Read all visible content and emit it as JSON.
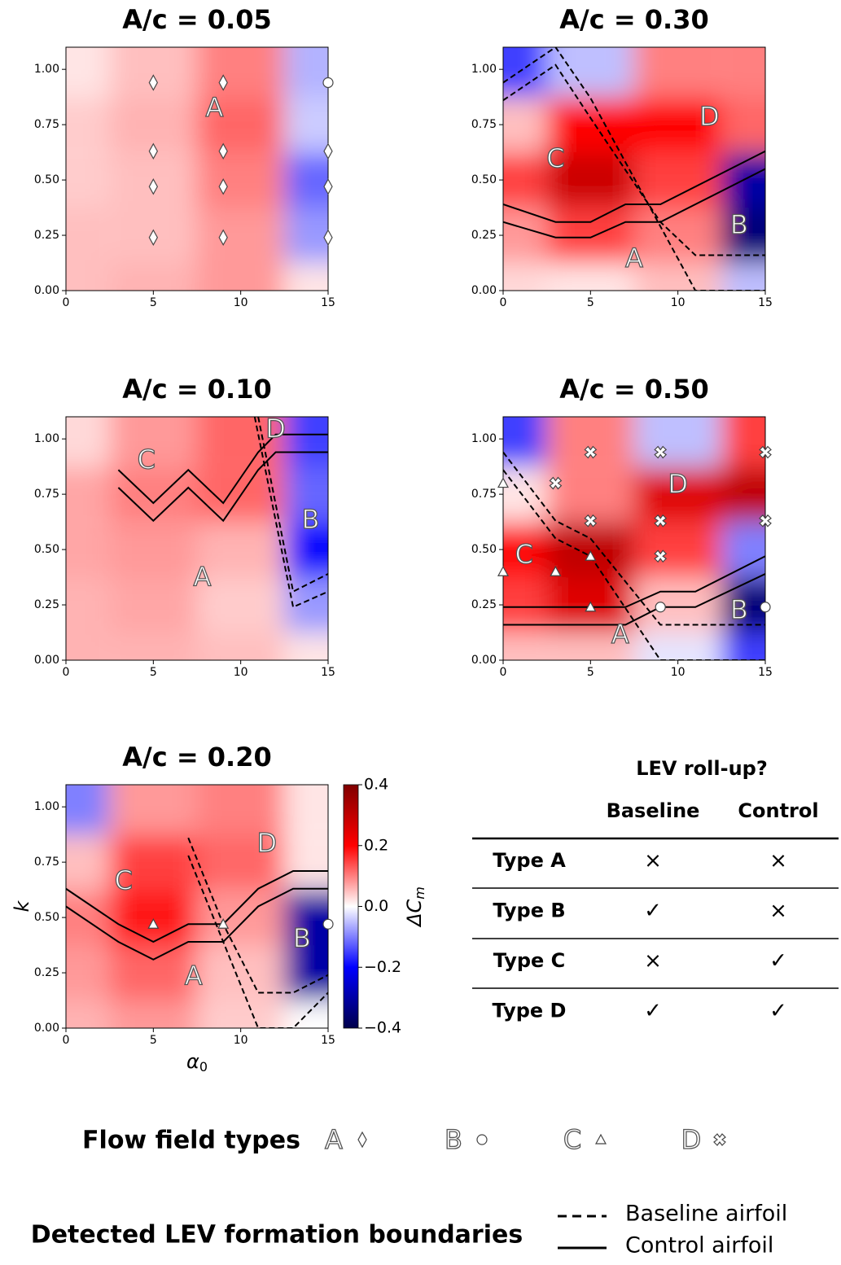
{
  "chart_data": [
    {
      "type": "heatmap",
      "title": "A/c = 0.05",
      "colormap": "seismic",
      "clim": [
        -0.4,
        0.4
      ],
      "xlim": [
        0,
        15
      ],
      "ylim": [
        0,
        1.1
      ],
      "xticks": [
        0,
        5,
        10,
        15
      ],
      "yticks": [
        {
          "value": 0,
          "label": "0.00"
        },
        {
          "value": 0.25,
          "label": "0.25"
        },
        {
          "value": 0.5,
          "label": "0.50"
        },
        {
          "value": 0.75,
          "label": "0.75"
        },
        {
          "value": 1,
          "label": "1.00"
        }
      ],
      "grid_x": [
        0,
        5,
        10,
        15
      ],
      "grid_y": [
        0,
        0.25,
        0.5,
        0.75,
        1.0
      ],
      "z": [
        [
          0.05,
          0.06,
          0.08,
          0.02
        ],
        [
          0.05,
          0.05,
          0.08,
          -0.08
        ],
        [
          0.04,
          0.05,
          0.1,
          -0.12
        ],
        [
          0.04,
          0.06,
          0.12,
          -0.04
        ],
        [
          0.02,
          0.05,
          0.1,
          -0.06
        ]
      ],
      "region_labels": [
        "A"
      ],
      "lines": [],
      "points": [
        {
          "group": "A",
          "x": [
            5,
            5,
            5,
            5,
            9,
            9,
            9,
            9,
            15,
            15,
            15
          ],
          "y": [
            0.94,
            0.63,
            0.47,
            0.24,
            0.94,
            0.63,
            0.47,
            0.24,
            0.63,
            0.47,
            0.24
          ]
        },
        {
          "group": "B",
          "x": [
            15
          ],
          "y": [
            0.94
          ]
        }
      ]
    },
    {
      "type": "heatmap",
      "title": "A/c = 0.30",
      "colormap": "seismic",
      "clim": [
        -0.4,
        0.4
      ],
      "xlim": [
        0,
        15
      ],
      "ylim": [
        0,
        1.1
      ],
      "xticks": [
        0,
        5,
        10,
        15
      ],
      "yticks": [
        {
          "value": 0,
          "label": "0.00"
        },
        {
          "value": 0.25,
          "label": "0.25"
        },
        {
          "value": 0.5,
          "label": "0.50"
        },
        {
          "value": 0.75,
          "label": "0.75"
        },
        {
          "value": 1,
          "label": "1.00"
        }
      ],
      "grid_x": [
        0,
        5,
        10,
        15
      ],
      "grid_y": [
        0,
        0.25,
        0.5,
        0.75,
        1.0
      ],
      "z": [
        [
          0.03,
          0.02,
          0.05,
          -0.05
        ],
        [
          0.08,
          0.15,
          0.1,
          -0.35
        ],
        [
          0.15,
          0.28,
          0.15,
          -0.3
        ],
        [
          0.05,
          0.2,
          0.2,
          0.12
        ],
        [
          -0.15,
          -0.05,
          0.1,
          0.1
        ]
      ],
      "region_labels": [
        "D",
        "C",
        "B",
        "A"
      ],
      "lines": [
        {
          "style": "dashed",
          "x": [
            0,
            3,
            5,
            11,
            15
          ],
          "y": [
            0.94,
            1.1,
            0.87,
            0,
            0
          ]
        },
        {
          "style": "dashed",
          "x": [
            0,
            3,
            5,
            9,
            11,
            15
          ],
          "y": [
            0.86,
            1.02,
            0.78,
            0.31,
            0.16,
            0.16
          ]
        },
        {
          "style": "solid",
          "x": [
            0,
            3,
            5,
            7,
            9,
            15
          ],
          "y": [
            0.39,
            0.31,
            0.31,
            0.39,
            0.39,
            0.63
          ]
        },
        {
          "style": "solid",
          "x": [
            0,
            3,
            5,
            7,
            9,
            15
          ],
          "y": [
            0.31,
            0.24,
            0.24,
            0.31,
            0.31,
            0.55
          ]
        }
      ],
      "points": []
    },
    {
      "type": "heatmap",
      "title": "A/c = 0.10",
      "colormap": "seismic",
      "clim": [
        -0.4,
        0.4
      ],
      "xlim": [
        0,
        15
      ],
      "ylim": [
        0,
        1.1
      ],
      "xticks": [
        0,
        5,
        10,
        15
      ],
      "yticks": [
        {
          "value": 0,
          "label": "0.00"
        },
        {
          "value": 0.25,
          "label": "0.25"
        },
        {
          "value": 0.5,
          "label": "0.50"
        },
        {
          "value": 0.75,
          "label": "0.75"
        },
        {
          "value": 1,
          "label": "1.00"
        }
      ],
      "grid_x": [
        0,
        5,
        10,
        15
      ],
      "grid_y": [
        0,
        0.25,
        0.5,
        0.75,
        1.0
      ],
      "z": [
        [
          0.06,
          0.06,
          0.05,
          0.02
        ],
        [
          0.06,
          0.07,
          0.04,
          -0.08
        ],
        [
          0.07,
          0.08,
          0.06,
          -0.2
        ],
        [
          0.07,
          0.1,
          0.12,
          -0.12
        ],
        [
          0.03,
          0.08,
          0.12,
          -0.15
        ]
      ],
      "region_labels": [
        "D",
        "C",
        "B",
        "A"
      ],
      "lines": [
        {
          "style": "dashed",
          "x": [
            11,
            13,
            15
          ],
          "y": [
            1.1,
            0.31,
            0.39
          ]
        },
        {
          "style": "dashed",
          "x": [
            10.8,
            13,
            15
          ],
          "y": [
            1.1,
            0.24,
            0.31
          ]
        },
        {
          "style": "solid",
          "x": [
            3,
            5,
            7,
            9,
            11,
            12,
            15
          ],
          "y": [
            0.86,
            0.71,
            0.86,
            0.71,
            0.94,
            1.02,
            1.02
          ]
        },
        {
          "style": "solid",
          "x": [
            3,
            5,
            7,
            9,
            11,
            12,
            15
          ],
          "y": [
            0.78,
            0.63,
            0.78,
            0.63,
            0.86,
            0.94,
            0.94
          ]
        }
      ],
      "points": []
    },
    {
      "type": "heatmap",
      "title": "A/c = 0.50",
      "colormap": "seismic",
      "clim": [
        -0.4,
        0.4
      ],
      "xlim": [
        0,
        15
      ],
      "ylim": [
        0,
        1.1
      ],
      "xticks": [
        0,
        5,
        10,
        15
      ],
      "yticks": [
        {
          "value": 0,
          "label": "0.00"
        },
        {
          "value": 0.25,
          "label": "0.25"
        },
        {
          "value": 0.5,
          "label": "0.50"
        },
        {
          "value": 0.75,
          "label": "0.75"
        },
        {
          "value": 1,
          "label": "1.00"
        }
      ],
      "grid_x": [
        0,
        5,
        10,
        15
      ],
      "grid_y": [
        0,
        0.25,
        0.5,
        0.75,
        1.0
      ],
      "z": [
        [
          0.05,
          0.05,
          -0.02,
          -0.15
        ],
        [
          0.15,
          0.25,
          0.05,
          -0.35
        ],
        [
          0.2,
          0.3,
          0.15,
          -0.1
        ],
        [
          0.02,
          0.1,
          0.25,
          0.3
        ],
        [
          -0.15,
          0.1,
          -0.05,
          0.15
        ]
      ],
      "region_labels": [
        "D",
        "C",
        "B",
        "A"
      ],
      "lines": [
        {
          "style": "dashed",
          "x": [
            0,
            3,
            5,
            9,
            15
          ],
          "y": [
            0.94,
            0.63,
            0.55,
            0.16,
            0.16
          ]
        },
        {
          "style": "dashed",
          "x": [
            0,
            3,
            5,
            9,
            15
          ],
          "y": [
            0.86,
            0.55,
            0.47,
            0,
            0
          ]
        },
        {
          "style": "solid",
          "x": [
            0,
            7,
            9,
            11,
            15
          ],
          "y": [
            0.24,
            0.24,
            0.31,
            0.31,
            0.47
          ]
        },
        {
          "style": "solid",
          "x": [
            0,
            7,
            9,
            11,
            15
          ],
          "y": [
            0.16,
            0.16,
            0.24,
            0.24,
            0.39
          ]
        }
      ],
      "points": [
        {
          "group": "C",
          "x": [
            0,
            0,
            3,
            5,
            5
          ],
          "y": [
            0.8,
            0.4,
            0.4,
            0.47,
            0.24
          ]
        },
        {
          "group": "D",
          "x": [
            5,
            9,
            15,
            3,
            5,
            9,
            15,
            9
          ],
          "y": [
            0.94,
            0.94,
            0.94,
            0.8,
            0.63,
            0.63,
            0.63,
            0.47
          ]
        },
        {
          "group": "B",
          "x": [
            9,
            15
          ],
          "y": [
            0.24,
            0.24
          ]
        }
      ]
    },
    {
      "type": "heatmap",
      "title": "A/c = 0.20",
      "colormap": "seismic",
      "clim": [
        -0.4,
        0.4
      ],
      "xlim": [
        0,
        15
      ],
      "ylim": [
        0,
        1.1
      ],
      "xticks": [
        0,
        5,
        10,
        15
      ],
      "yticks": [
        {
          "value": 0,
          "label": "0.00"
        },
        {
          "value": 0.25,
          "label": "0.25"
        },
        {
          "value": 0.5,
          "label": "0.50"
        },
        {
          "value": 0.75,
          "label": "0.75"
        },
        {
          "value": 1,
          "label": "1.00"
        }
      ],
      "xlabel": "α",
      "xlabel_sub": "0",
      "ylabel": "k",
      "grid_x": [
        0,
        5,
        10,
        15
      ],
      "grid_y": [
        0,
        0.25,
        0.5,
        0.75,
        1.0
      ],
      "z": [
        [
          0.06,
          0.08,
          0.04,
          0.0
        ],
        [
          0.08,
          0.12,
          0.05,
          -0.3
        ],
        [
          0.1,
          0.18,
          0.08,
          -0.3
        ],
        [
          0.05,
          0.15,
          0.12,
          0.02
        ],
        [
          -0.1,
          0.08,
          0.1,
          0.02
        ]
      ],
      "region_labels": [
        "D",
        "C",
        "B",
        "A"
      ],
      "lines": [
        {
          "style": "dashed",
          "x": [
            7,
            9,
            11,
            13,
            15
          ],
          "y": [
            0.86,
            0.47,
            0.16,
            0.16,
            0.24
          ]
        },
        {
          "style": "dashed",
          "x": [
            7,
            9,
            11,
            13,
            15
          ],
          "y": [
            0.78,
            0.39,
            0,
            0,
            0.16
          ]
        },
        {
          "style": "solid",
          "x": [
            0,
            3,
            5,
            7,
            9,
            11,
            13,
            15
          ],
          "y": [
            0.63,
            0.47,
            0.39,
            0.47,
            0.47,
            0.63,
            0.71,
            0.71
          ]
        },
        {
          "style": "solid",
          "x": [
            0,
            3,
            5,
            7,
            9,
            11,
            13,
            15
          ],
          "y": [
            0.55,
            0.39,
            0.31,
            0.39,
            0.39,
            0.55,
            0.63,
            0.63
          ]
        }
      ],
      "points": [
        {
          "group": "C",
          "x": [
            5,
            9
          ],
          "y": [
            0.47,
            0.47
          ]
        },
        {
          "group": "B",
          "x": [
            15
          ],
          "y": [
            0.47
          ]
        }
      ],
      "colorbar": {
        "label": "ΔC",
        "label_sub": "m",
        "ticks": [
          0.4,
          0.2,
          {
            "value": 0,
            "label": "0.0"
          },
          {
            "value": -0.2,
            "label": "−0.2"
          },
          {
            "value": -0.4,
            "label": "−0.4"
          }
        ]
      }
    }
  ],
  "table": {
    "title": "LEV roll-up?",
    "columns": [
      "",
      "Baseline",
      "Control"
    ],
    "rows": [
      [
        "Type A",
        "×",
        "×"
      ],
      [
        "Type B",
        "✓",
        "×"
      ],
      [
        "Type C",
        "×",
        "✓"
      ],
      [
        "Type D",
        "✓",
        "✓"
      ]
    ]
  },
  "legend": {
    "flow_title": "Flow field types",
    "flow_types": [
      {
        "letter": "A",
        "marker": "diamond"
      },
      {
        "letter": "B",
        "marker": "circle"
      },
      {
        "letter": "C",
        "marker": "triangle"
      },
      {
        "letter": "D",
        "marker": "cross"
      }
    ],
    "boundary_title": "Detected LEV formation boundaries",
    "boundaries": [
      {
        "name": "Baseline airfoil",
        "style": "dashed"
      },
      {
        "name": "Control airfoil",
        "style": "solid"
      }
    ]
  }
}
